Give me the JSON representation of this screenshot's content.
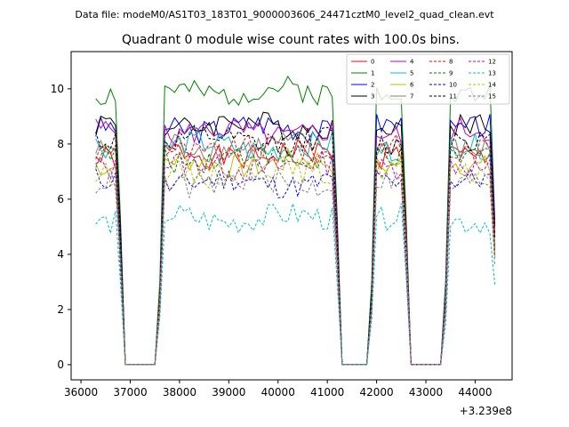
{
  "suptitle": "Data file: modeM0/AS1T03_183T01_9000003606_24471cztM0_level2_quad_clean.evt",
  "chart_data": {
    "type": "line",
    "title": "Quadrant 0 module wise count rates with 100.0s bins.",
    "xlabel": "",
    "ylabel": "",
    "x_offset_label": "+3.239e8",
    "xlim": [
      35800,
      44750
    ],
    "ylim": [
      -0.55,
      11.35
    ],
    "xticks": [
      36000,
      37000,
      38000,
      39000,
      40000,
      41000,
      42000,
      43000,
      44000
    ],
    "yticks": [
      0,
      2,
      4,
      6,
      8,
      10
    ],
    "legend_position": "top-right",
    "legend_columns": 4,
    "time_start": 36300,
    "bin_width": 100,
    "segments": [
      [
        36300,
        36800
      ],
      [
        37600,
        41200
      ],
      [
        41900,
        42600
      ],
      [
        43400,
        44400
      ]
    ],
    "series": [
      {
        "name": "0",
        "color": "#ff0000",
        "dashed": false,
        "level": 7.6,
        "seed": 1
      },
      {
        "name": "1",
        "color": "#008000",
        "dashed": false,
        "level": 9.9,
        "seed": 2
      },
      {
        "name": "2",
        "color": "#0000ff",
        "dashed": false,
        "level": 8.6,
        "seed": 3
      },
      {
        "name": "3",
        "color": "#000000",
        "dashed": false,
        "level": 8.7,
        "seed": 4
      },
      {
        "name": "4",
        "color": "#bf00bf",
        "dashed": false,
        "level": 8.4,
        "seed": 5
      },
      {
        "name": "5",
        "color": "#00bfbf",
        "dashed": false,
        "level": 7.9,
        "seed": 6
      },
      {
        "name": "6",
        "color": "#bfbf00",
        "dashed": false,
        "level": 7.3,
        "seed": 7
      },
      {
        "name": "7",
        "color": "#808080",
        "dashed": false,
        "level": 7.9,
        "seed": 8
      },
      {
        "name": "8",
        "color": "#ff0000",
        "dashed": true,
        "level": 7.8,
        "seed": 9
      },
      {
        "name": "9",
        "color": "#008000",
        "dashed": true,
        "level": 7.5,
        "seed": 10
      },
      {
        "name": "10",
        "color": "#0000ff",
        "dashed": true,
        "level": 6.6,
        "seed": 11
      },
      {
        "name": "11",
        "color": "#000000",
        "dashed": true,
        "level": 8.1,
        "seed": 12
      },
      {
        "name": "12",
        "color": "#bf00bf",
        "dashed": true,
        "level": 7.2,
        "seed": 13
      },
      {
        "name": "13",
        "color": "#00bfbf",
        "dashed": true,
        "level": 5.3,
        "seed": 14
      },
      {
        "name": "14",
        "color": "#bfbf00",
        "dashed": true,
        "level": 7.0,
        "seed": 15
      },
      {
        "name": "15",
        "color": "#808080",
        "dashed": true,
        "level": 6.6,
        "seed": 16
      }
    ]
  }
}
